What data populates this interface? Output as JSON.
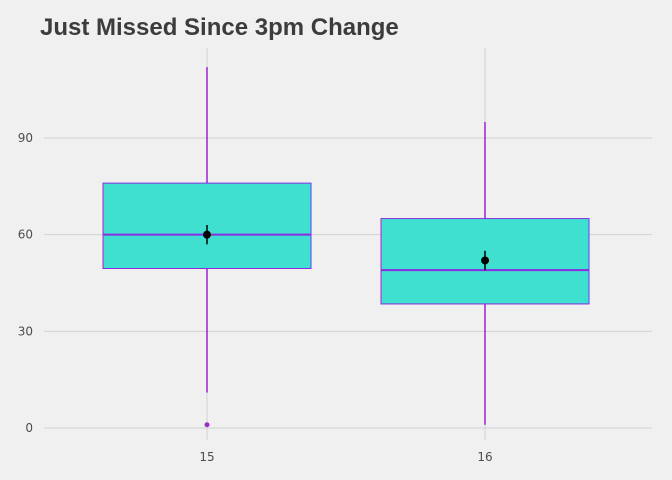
{
  "chart_data": {
    "type": "box",
    "title": "Just Missed Since 3pm Change",
    "xlabel": "",
    "ylabel": "",
    "ylim": [
      -5,
      117
    ],
    "yticks": [
      0,
      30,
      60,
      90
    ],
    "grid": true,
    "colors": {
      "background": "#f0f0f0",
      "grid": "#d2d2d2",
      "box_fill": "#40e0d0",
      "box_line": "#8a2be2",
      "whisker": "#9400d3",
      "outlier": "#9932cc",
      "mean_point": "#000000"
    },
    "boxes": [
      {
        "category": "15",
        "whisker_low": 11,
        "q1": 49.5,
        "median": 60,
        "q3": 76,
        "whisker_high": 112,
        "mean": 60,
        "mean_err": [
          57,
          63
        ],
        "outliers": [
          1
        ]
      },
      {
        "category": "16",
        "whisker_low": 1,
        "q1": 38.5,
        "median": 49,
        "q3": 65,
        "whisker_high": 95,
        "mean": 52,
        "mean_err": [
          49,
          55
        ],
        "outliers": []
      }
    ]
  }
}
